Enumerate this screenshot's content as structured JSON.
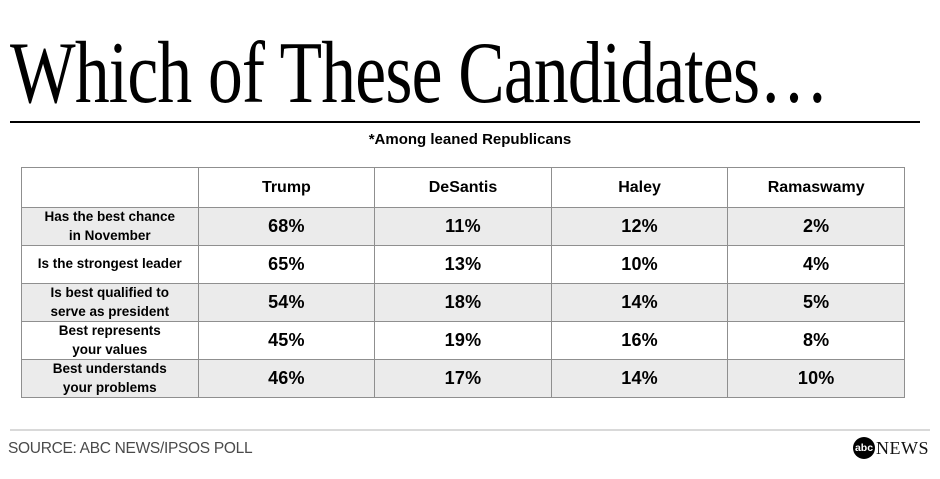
{
  "title": "Which of These Candidates…",
  "subtitle": "*Among leaned Republicans",
  "source": "SOURCE: ABC NEWS/IPSOS POLL",
  "logo": {
    "circle_text": "abc",
    "news_text": "NEWS"
  },
  "colors": {
    "row_shade": "#ebebeb",
    "table_border": "#8f8f8f",
    "divider": "#d9d9d9",
    "footer_text": "#4a4a4a"
  },
  "chart_data": {
    "type": "table",
    "title": "Which of These Candidates…",
    "subtitle": "*Among leaned Republicans",
    "columns": [
      "",
      "Trump",
      "DeSantis",
      "Haley",
      "Ramaswamy"
    ],
    "rows": [
      {
        "label": "Has the best chance\nin November",
        "values": [
          "68%",
          "11%",
          "12%",
          "2%"
        ]
      },
      {
        "label": "Is the strongest leader",
        "values": [
          "65%",
          "13%",
          "10%",
          "4%"
        ]
      },
      {
        "label": "Is best qualified to\nserve as president",
        "values": [
          "54%",
          "18%",
          "14%",
          "5%"
        ]
      },
      {
        "label": "Best represents\nyour values",
        "values": [
          "45%",
          "19%",
          "16%",
          "8%"
        ]
      },
      {
        "label": "Best understands\nyour problems",
        "values": [
          "46%",
          "17%",
          "14%",
          "10%"
        ]
      }
    ]
  }
}
